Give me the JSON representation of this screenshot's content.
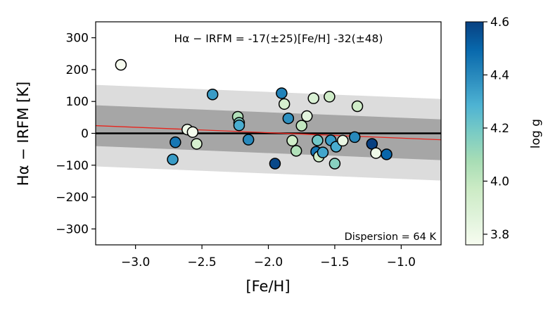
{
  "chart_data": {
    "type": "scatter",
    "xlabel": "[Fe/H]",
    "ylabel": "Hα − IRFM  [K]",
    "xlim": [
      -3.3,
      -0.7
    ],
    "ylim": [
      -350,
      350
    ],
    "xticks": [
      -3.0,
      -2.5,
      -2.0,
      -1.5,
      -1.0
    ],
    "xtick_labels": [
      "−3.0",
      "−2.5",
      "−2.0",
      "−1.5",
      "−1.0"
    ],
    "yticks": [
      300,
      200,
      100,
      0,
      -100,
      -200,
      -300
    ],
    "ytick_labels": [
      "300",
      "200",
      "100",
      "0",
      "−100",
      "−200",
      "−300"
    ],
    "grid": false,
    "annotations": {
      "equation": "Hα − IRFM = -17(±25)[Fe/H] -32(±48)",
      "dispersion": "Dispersion = 64 K"
    },
    "fit_line": {
      "slope": -17,
      "intercept": -32,
      "color": "#e8241c"
    },
    "zero_line": {
      "y": 0,
      "color": "#000000"
    },
    "bands": [
      {
        "name": "1-sigma band",
        "half_width": 64,
        "color": "#a6a6a6"
      },
      {
        "name": "2-sigma band",
        "half_width": 128,
        "color": "#dcdcdc"
      }
    ],
    "colorbar": {
      "label": "log g",
      "range": [
        3.76,
        4.6
      ],
      "ticks": [
        3.8,
        4.0,
        4.2,
        4.4,
        4.6
      ],
      "tick_labels": [
        "3.8",
        "4.0",
        "4.2",
        "4.4",
        "4.6"
      ],
      "colormap": [
        "#f7fcf0",
        "#e0f3db",
        "#ccebc5",
        "#a8ddb5",
        "#7bccc4",
        "#4eb3d3",
        "#2b8cbe",
        "#0868ac",
        "#084081"
      ]
    },
    "points": [
      {
        "x": -3.11,
        "y": 215,
        "logg": 3.76
      },
      {
        "x": -2.72,
        "y": -82,
        "logg": 4.35
      },
      {
        "x": -2.7,
        "y": -28,
        "logg": 4.45
      },
      {
        "x": -2.61,
        "y": 12,
        "logg": 3.8
      },
      {
        "x": -2.57,
        "y": 4,
        "logg": 3.78
      },
      {
        "x": -2.54,
        "y": -33,
        "logg": 3.92
      },
      {
        "x": -2.42,
        "y": 122,
        "logg": 4.35
      },
      {
        "x": -2.23,
        "y": 52,
        "logg": 4.05
      },
      {
        "x": -2.22,
        "y": 33,
        "logg": 4.15
      },
      {
        "x": -2.22,
        "y": 25,
        "logg": 4.3
      },
      {
        "x": -2.15,
        "y": -20,
        "logg": 4.4
      },
      {
        "x": -1.95,
        "y": -95,
        "logg": 4.58
      },
      {
        "x": -1.9,
        "y": 126,
        "logg": 4.42
      },
      {
        "x": -1.88,
        "y": 92,
        "logg": 3.92
      },
      {
        "x": -1.85,
        "y": 47,
        "logg": 4.38
      },
      {
        "x": -1.82,
        "y": -23,
        "logg": 3.95
      },
      {
        "x": -1.79,
        "y": -55,
        "logg": 4.05
      },
      {
        "x": -1.75,
        "y": 24,
        "logg": 4.0
      },
      {
        "x": -1.71,
        "y": 54,
        "logg": 3.85
      },
      {
        "x": -1.66,
        "y": 110,
        "logg": 3.9
      },
      {
        "x": -1.64,
        "y": -58,
        "logg": 4.45
      },
      {
        "x": -1.63,
        "y": -22,
        "logg": 4.2
      },
      {
        "x": -1.62,
        "y": -73,
        "logg": 3.95
      },
      {
        "x": -1.59,
        "y": -60,
        "logg": 4.32
      },
      {
        "x": -1.54,
        "y": 115,
        "logg": 3.95
      },
      {
        "x": -1.53,
        "y": -22,
        "logg": 4.35
      },
      {
        "x": -1.5,
        "y": -95,
        "logg": 4.15
      },
      {
        "x": -1.49,
        "y": -42,
        "logg": 4.3
      },
      {
        "x": -1.44,
        "y": -23,
        "logg": 3.82
      },
      {
        "x": -1.35,
        "y": -12,
        "logg": 4.4
      },
      {
        "x": -1.33,
        "y": 85,
        "logg": 3.95
      },
      {
        "x": -1.22,
        "y": -33,
        "logg": 4.6
      },
      {
        "x": -1.19,
        "y": -62,
        "logg": 3.8
      },
      {
        "x": -1.11,
        "y": -66,
        "logg": 4.5
      }
    ]
  }
}
